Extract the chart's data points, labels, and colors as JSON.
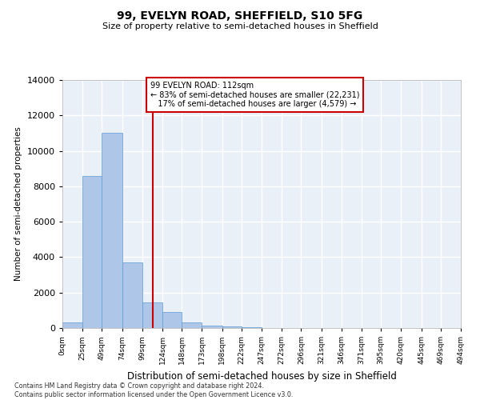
{
  "title": "99, EVELYN ROAD, SHEFFIELD, S10 5FG",
  "subtitle": "Size of property relative to semi-detached houses in Sheffield",
  "xlabel": "Distribution of semi-detached houses by size in Sheffield",
  "ylabel": "Number of semi-detached properties",
  "property_label": "99 EVELYN ROAD: 112sqm",
  "pct_smaller": 83,
  "count_smaller": 22231,
  "pct_larger": 17,
  "count_larger": 4579,
  "bin_edges": [
    0,
    25,
    49,
    74,
    99,
    124,
    148,
    173,
    198,
    222,
    247,
    272,
    296,
    321,
    346,
    371,
    395,
    420,
    445,
    469,
    494
  ],
  "bar_heights": [
    300,
    8600,
    11000,
    3700,
    1450,
    900,
    300,
    150,
    100,
    50,
    20,
    10,
    5,
    2,
    1,
    0,
    0,
    0,
    0,
    0
  ],
  "tick_labels": [
    "0sqm",
    "25sqm",
    "49sqm",
    "74sqm",
    "99sqm",
    "124sqm",
    "148sqm",
    "173sqm",
    "198sqm",
    "222sqm",
    "247sqm",
    "272sqm",
    "296sqm",
    "321sqm",
    "346sqm",
    "371sqm",
    "395sqm",
    "420sqm",
    "445sqm",
    "469sqm",
    "494sqm"
  ],
  "bar_color": "#aec6e8",
  "bar_edge_color": "#5b9bd5",
  "vline_color": "#cc0000",
  "vline_x": 112,
  "bg_color": "#eaf0f8",
  "grid_color": "#ffffff",
  "annotation_box_color": "#ffffff",
  "annotation_box_edge": "#cc0000",
  "footer_line1": "Contains HM Land Registry data © Crown copyright and database right 2024.",
  "footer_line2": "Contains public sector information licensed under the Open Government Licence v3.0.",
  "ylim": [
    0,
    14000
  ],
  "xlim": [
    0,
    494
  ]
}
